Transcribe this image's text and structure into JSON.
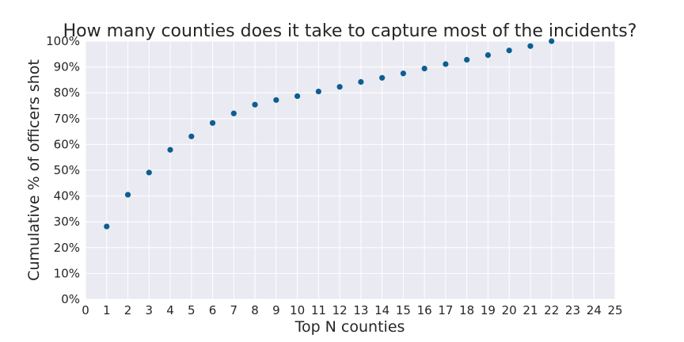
{
  "chart_data": {
    "type": "scatter",
    "title": "How many counties does it take to capture most of the incidents?",
    "xlabel": "Top N counties",
    "ylabel": "Cumulative % of officers shot",
    "xlim": [
      0,
      25
    ],
    "ylim": [
      0,
      1
    ],
    "x_ticks": [
      "0",
      "1",
      "2",
      "3",
      "4",
      "5",
      "6",
      "7",
      "8",
      "9",
      "10",
      "11",
      "12",
      "13",
      "14",
      "15",
      "16",
      "17",
      "18",
      "19",
      "20",
      "21",
      "22",
      "23",
      "24",
      "25"
    ],
    "y_ticks": [
      "0%",
      "10%",
      "20%",
      "30%",
      "40%",
      "50%",
      "60%",
      "70%",
      "80%",
      "90%",
      "100%"
    ],
    "grid": true,
    "background_color": "#eaeaf2",
    "marker_color": "#0d5e91",
    "x": [
      1,
      2,
      3,
      4,
      5,
      6,
      7,
      8,
      9,
      10,
      11,
      12,
      13,
      14,
      15,
      16,
      17,
      18,
      19,
      20,
      21,
      22
    ],
    "y": [
      0.282,
      0.405,
      0.491,
      0.579,
      0.631,
      0.683,
      0.72,
      0.754,
      0.772,
      0.787,
      0.805,
      0.823,
      0.842,
      0.858,
      0.875,
      0.894,
      0.911,
      0.928,
      0.946,
      0.964,
      0.981,
      1.0
    ]
  }
}
